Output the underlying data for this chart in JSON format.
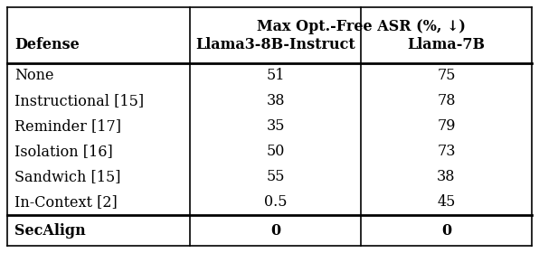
{
  "col_header_left": "Defense",
  "col_header_mid": "Llama3-8B-Instruct",
  "col_header_right": "Llama-7B",
  "title_text": "Max Opt.-Free ASR (%, ↓)",
  "rows": [
    [
      "None",
      "51",
      "75"
    ],
    [
      "Instructional [15]",
      "38",
      "78"
    ],
    [
      "Reminder [17]",
      "35",
      "79"
    ],
    [
      "Isolation [16]",
      "50",
      "73"
    ],
    [
      "Sandwich [15]",
      "55",
      "38"
    ],
    [
      "In-Context [2]",
      "0.5",
      "45"
    ]
  ],
  "last_row": [
    "SecAlign",
    "0",
    "0"
  ],
  "bg_color": "#ffffff",
  "text_color": "#000000",
  "line_color": "#000000",
  "figsize": [
    5.96,
    2.8
  ],
  "dpi": 100
}
